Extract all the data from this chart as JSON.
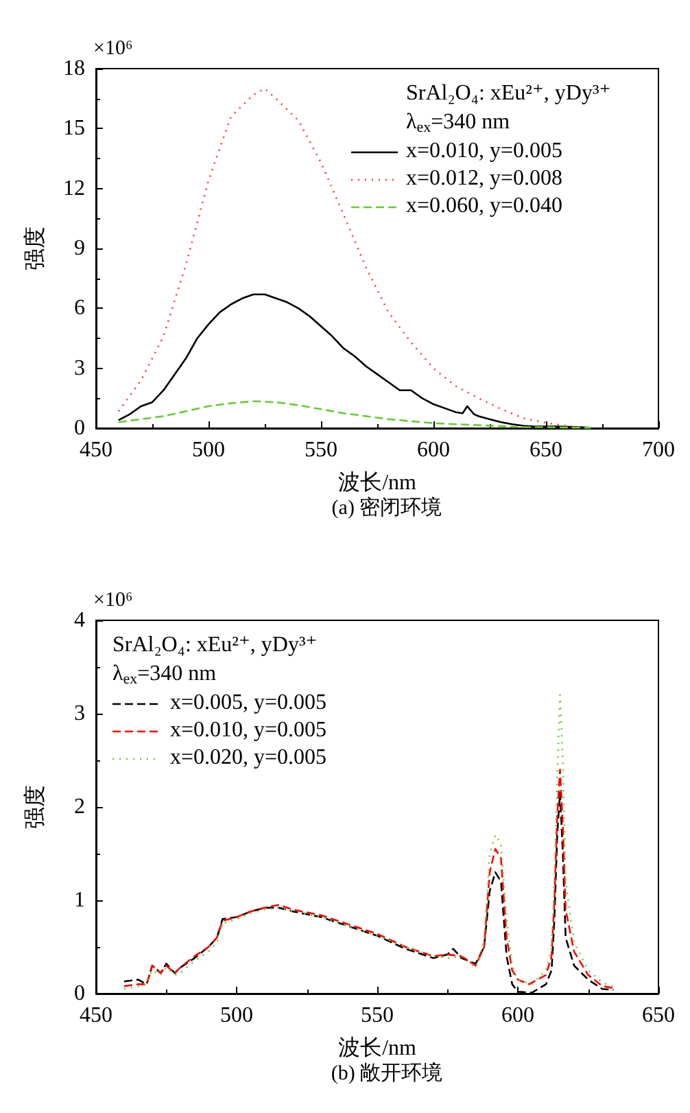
{
  "chart_data": [
    {
      "type": "line",
      "title": "(a) 密闭环境",
      "xlabel": "波长/nm",
      "ylabel": "强度",
      "legend_title": "SrAl₂O₄: xEu²⁺, yDy³⁺\nλ$_{ex}$=340 nm",
      "annotations": [
        "×10⁶"
      ],
      "xlim": [
        450,
        700
      ],
      "xticks": [
        450,
        500,
        550,
        600,
        650,
        700
      ],
      "ylim": [
        0,
        18
      ],
      "yticks": [
        0,
        3,
        6,
        9,
        12,
        15,
        18
      ],
      "grid": false,
      "legend": "top right",
      "marker": "none",
      "series": [
        {
          "name": "x=0.010, y=0.005",
          "color": "#000000",
          "line_style": "solid",
          "x": [
            460,
            465,
            470,
            475,
            480,
            485,
            490,
            495,
            500,
            505,
            510,
            515,
            520,
            525,
            530,
            535,
            540,
            545,
            550,
            555,
            560,
            565,
            570,
            575,
            580,
            585,
            590,
            595,
            600,
            605,
            610,
            613,
            615,
            618,
            620,
            625,
            630,
            635,
            640,
            645,
            650,
            655,
            660,
            665,
            670
          ],
          "values": [
            0.4,
            0.7,
            1.1,
            1.3,
            1.9,
            2.7,
            3.5,
            4.5,
            5.2,
            5.8,
            6.2,
            6.5,
            6.7,
            6.7,
            6.5,
            6.3,
            6.0,
            5.6,
            5.1,
            4.6,
            4.0,
            3.6,
            3.1,
            2.7,
            2.3,
            1.9,
            1.9,
            1.5,
            1.2,
            1.0,
            0.8,
            0.75,
            1.1,
            0.7,
            0.6,
            0.45,
            0.3,
            0.2,
            0.12,
            0.08,
            0.08,
            0.08,
            0.07,
            0.05,
            0.02
          ]
        },
        {
          "name": "x=0.012, y=0.008",
          "color": "#ff3333",
          "line_style": "dotted",
          "x": [
            460,
            470,
            480,
            490,
            500,
            510,
            520,
            525,
            530,
            540,
            550,
            560,
            570,
            580,
            590,
            600,
            610,
            620,
            630,
            640,
            650,
            660,
            670
          ],
          "values": [
            0.85,
            2.4,
            4.6,
            8.2,
            12.4,
            15.6,
            16.7,
            17.0,
            16.5,
            15.4,
            13.3,
            10.7,
            8.05,
            5.8,
            4.3,
            3.0,
            2.1,
            1.5,
            0.96,
            0.5,
            0.27,
            0.1,
            0.03
          ]
        },
        {
          "name": "x=0.060, y=0.040",
          "color": "#66cc33",
          "line_style": "dashed",
          "x": [
            460,
            470,
            480,
            490,
            500,
            510,
            520,
            530,
            540,
            550,
            560,
            570,
            580,
            590,
            600,
            610,
            620,
            630,
            640,
            650,
            660,
            670
          ],
          "values": [
            0.3,
            0.45,
            0.6,
            0.85,
            1.1,
            1.25,
            1.35,
            1.3,
            1.15,
            0.95,
            0.75,
            0.6,
            0.45,
            0.35,
            0.25,
            0.2,
            0.15,
            0.1,
            0.05,
            0.05,
            0.03,
            0.02
          ]
        }
      ]
    },
    {
      "type": "line",
      "title": "(b) 敞开环境",
      "xlabel": "波长/nm",
      "ylabel": "强度",
      "legend_title": "SrAl₂O₄: xEu²⁺, yDy³⁺\nλ$_{ex}$=340 nm",
      "annotations": [
        "×10⁶"
      ],
      "xlim": [
        450,
        650
      ],
      "xticks": [
        450,
        500,
        550,
        600,
        650
      ],
      "ylim": [
        0,
        4
      ],
      "yticks": [
        0,
        1,
        2,
        3,
        4
      ],
      "grid": false,
      "legend": "top left",
      "marker": "none",
      "series": [
        {
          "name": "x=0.005, y=0.005",
          "color": "#000000",
          "line_style": "dashed",
          "x": [
            460,
            465,
            468,
            470,
            473,
            475,
            478,
            480,
            485,
            490,
            493,
            495,
            500,
            505,
            510,
            515,
            520,
            530,
            540,
            550,
            560,
            570,
            575,
            577,
            580,
            585,
            588,
            590,
            592,
            594,
            596,
            598,
            600,
            605,
            610,
            612,
            613,
            614,
            615,
            616,
            617,
            620,
            625,
            630,
            634
          ],
          "values": [
            0.13,
            0.15,
            0.1,
            0.3,
            0.22,
            0.32,
            0.22,
            0.28,
            0.38,
            0.5,
            0.6,
            0.8,
            0.82,
            0.88,
            0.92,
            0.92,
            0.88,
            0.82,
            0.72,
            0.62,
            0.48,
            0.38,
            0.42,
            0.48,
            0.38,
            0.32,
            0.5,
            1.1,
            1.3,
            1.2,
            0.4,
            0.1,
            0.02,
            0.01,
            0.1,
            0.25,
            0.8,
            1.7,
            2.15,
            1.5,
            0.6,
            0.3,
            0.15,
            0.05,
            0.04
          ]
        },
        {
          "name": "x=0.010, y=0.005",
          "color": "#ff0000",
          "line_style": "dashed",
          "x": [
            460,
            465,
            468,
            470,
            473,
            475,
            478,
            480,
            485,
            490,
            493,
            495,
            500,
            505,
            510,
            515,
            520,
            530,
            540,
            550,
            560,
            570,
            575,
            580,
            585,
            588,
            590,
            592,
            594,
            596,
            598,
            600,
            604,
            610,
            612,
            613,
            614,
            615,
            616,
            617,
            620,
            625,
            630,
            634
          ],
          "values": [
            0.08,
            0.1,
            0.1,
            0.3,
            0.22,
            0.3,
            0.22,
            0.28,
            0.4,
            0.5,
            0.6,
            0.78,
            0.82,
            0.88,
            0.92,
            0.95,
            0.9,
            0.84,
            0.74,
            0.64,
            0.5,
            0.4,
            0.42,
            0.4,
            0.3,
            0.5,
            1.3,
            1.55,
            1.45,
            0.6,
            0.25,
            0.15,
            0.1,
            0.2,
            0.4,
            1.0,
            1.9,
            2.4,
            1.8,
            0.9,
            0.45,
            0.2,
            0.08,
            0.06
          ]
        },
        {
          "name": "x=0.020, y=0.005",
          "color": "#66cc33",
          "line_style": "dotted",
          "x": [
            460,
            465,
            468,
            470,
            473,
            475,
            478,
            480,
            485,
            490,
            493,
            495,
            500,
            505,
            510,
            515,
            520,
            530,
            540,
            550,
            560,
            570,
            575,
            580,
            585,
            588,
            590,
            592,
            594,
            596,
            598,
            600,
            605,
            610,
            612,
            613,
            614,
            615,
            616,
            617,
            620,
            625,
            630,
            634
          ],
          "values": [
            0.05,
            0.08,
            0.1,
            0.25,
            0.2,
            0.28,
            0.2,
            0.22,
            0.35,
            0.45,
            0.55,
            0.75,
            0.8,
            0.86,
            0.9,
            0.92,
            0.88,
            0.82,
            0.72,
            0.62,
            0.5,
            0.4,
            0.38,
            0.4,
            0.28,
            0.55,
            1.5,
            1.7,
            1.6,
            0.8,
            0.3,
            0.15,
            0.1,
            0.25,
            0.5,
            1.2,
            2.3,
            3.2,
            2.5,
            1.2,
            0.55,
            0.25,
            0.12,
            0.07
          ]
        }
      ]
    }
  ]
}
